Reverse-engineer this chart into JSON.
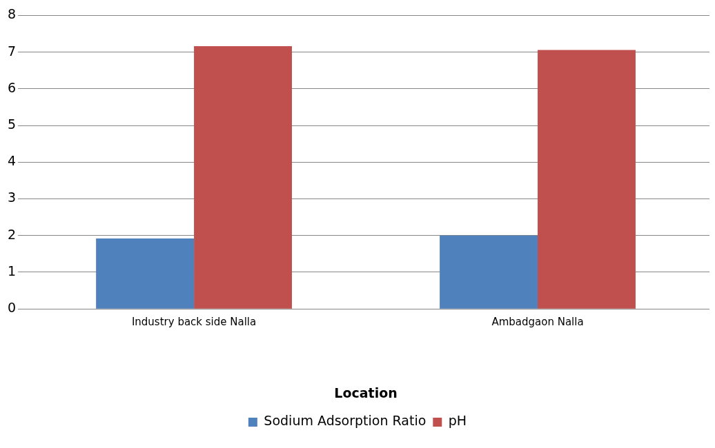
{
  "chart_data": {
    "type": "bar",
    "xlabel": "Location",
    "categories": [
      "Industry back side Nalla",
      "Ambadgaon Nalla"
    ],
    "series": [
      {
        "name": "Sodium Adsorption Ratio",
        "color": "#4f81bd",
        "values": [
          1.92,
          2.0
        ]
      },
      {
        "name": "pH",
        "color": "#c0504d",
        "values": [
          7.16,
          7.06
        ]
      }
    ],
    "ylim": [
      0,
      8
    ],
    "yticks": [
      0,
      1,
      2,
      3,
      4,
      5,
      6,
      7,
      8
    ],
    "grid": "y",
    "legend": "bottom"
  }
}
